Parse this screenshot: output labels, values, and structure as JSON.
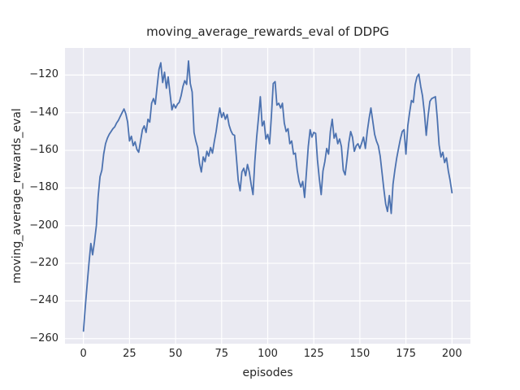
{
  "title": "moving_average_rewards_eval of DDPG",
  "colors": {
    "figure_bg": "#ffffff",
    "plot_bg": "#eaeaf2",
    "grid": "#ffffff",
    "line": "#4c72b0",
    "text": "#262626"
  },
  "chart_data": {
    "type": "line",
    "title": "moving_average_rewards_eval of DDPG",
    "xlabel": "episodes",
    "ylabel": "moving_average_rewards_eval",
    "grid": true,
    "legend": false,
    "x_ticks": [
      0,
      25,
      50,
      75,
      100,
      125,
      150,
      175,
      200
    ],
    "y_ticks": [
      -120,
      -140,
      -160,
      -180,
      -200,
      -220,
      -240,
      -260
    ],
    "xlim": [
      -10,
      210
    ],
    "ylim": [
      -262.7,
      -105.6
    ],
    "series": [
      {
        "name": "moving_average_rewards_eval",
        "x_start": 0,
        "x_step": 1,
        "y": [
          -256,
          -243,
          -231.5,
          -220,
          -209.5,
          -215.5,
          -208.5,
          -200,
          -184.5,
          -174,
          -170.5,
          -162,
          -156.5,
          -153.5,
          -151.5,
          -150,
          -148.5,
          -147.5,
          -145.5,
          -144,
          -142,
          -140,
          -138,
          -140.5,
          -145,
          -155,
          -152.5,
          -157.5,
          -155.5,
          -159.5,
          -161,
          -155,
          -149,
          -147,
          -150.5,
          -143.5,
          -145,
          -135,
          -132.5,
          -135.5,
          -126,
          -117,
          -113.5,
          -124,
          -118.5,
          -127,
          -121,
          -130,
          -138.5,
          -135.5,
          -137.5,
          -135.5,
          -134.5,
          -131,
          -126,
          -123,
          -125,
          -112.5,
          -124.5,
          -129,
          -150.5,
          -155,
          -158.5,
          -167,
          -171.5,
          -163.5,
          -166,
          -160.5,
          -163,
          -158.5,
          -161.5,
          -155.5,
          -150,
          -143,
          -137.5,
          -142.5,
          -140,
          -143.5,
          -141,
          -146.5,
          -149.5,
          -151.5,
          -152,
          -163.5,
          -176,
          -181.5,
          -171.5,
          -169.5,
          -173.5,
          -167.5,
          -171.5,
          -178,
          -183.5,
          -166,
          -153,
          -142.5,
          -131.5,
          -147,
          -144.5,
          -154,
          -151.5,
          -156.5,
          -142,
          -124.5,
          -123.5,
          -136,
          -135,
          -137.5,
          -135,
          -145.5,
          -150,
          -148.5,
          -156.5,
          -155,
          -162,
          -161.5,
          -170.5,
          -176.5,
          -179.5,
          -176.5,
          -185,
          -172,
          -158,
          -149,
          -153,
          -150.5,
          -151,
          -165,
          -175,
          -183.5,
          -171,
          -166,
          -159,
          -162,
          -150,
          -143.5,
          -153.5,
          -151,
          -156.5,
          -154,
          -158,
          -170.5,
          -173,
          -165,
          -156,
          -150,
          -153,
          -160.5,
          -157.5,
          -156.5,
          -159,
          -156,
          -153,
          -159,
          -150,
          -143,
          -137.5,
          -144.5,
          -151.5,
          -155,
          -157.5,
          -163,
          -171.5,
          -180.5,
          -188.5,
          -192.5,
          -184,
          -193.5,
          -178,
          -170.5,
          -164,
          -159,
          -154,
          -150,
          -149,
          -162,
          -147,
          -140,
          -133.5,
          -134.5,
          -125,
          -121,
          -119.5,
          -126,
          -131,
          -140,
          -152,
          -142,
          -134,
          -132.5,
          -132,
          -131.5,
          -143,
          -157,
          -163.5,
          -161,
          -166.5,
          -164,
          -171,
          -176,
          -182.5
        ]
      }
    ]
  }
}
